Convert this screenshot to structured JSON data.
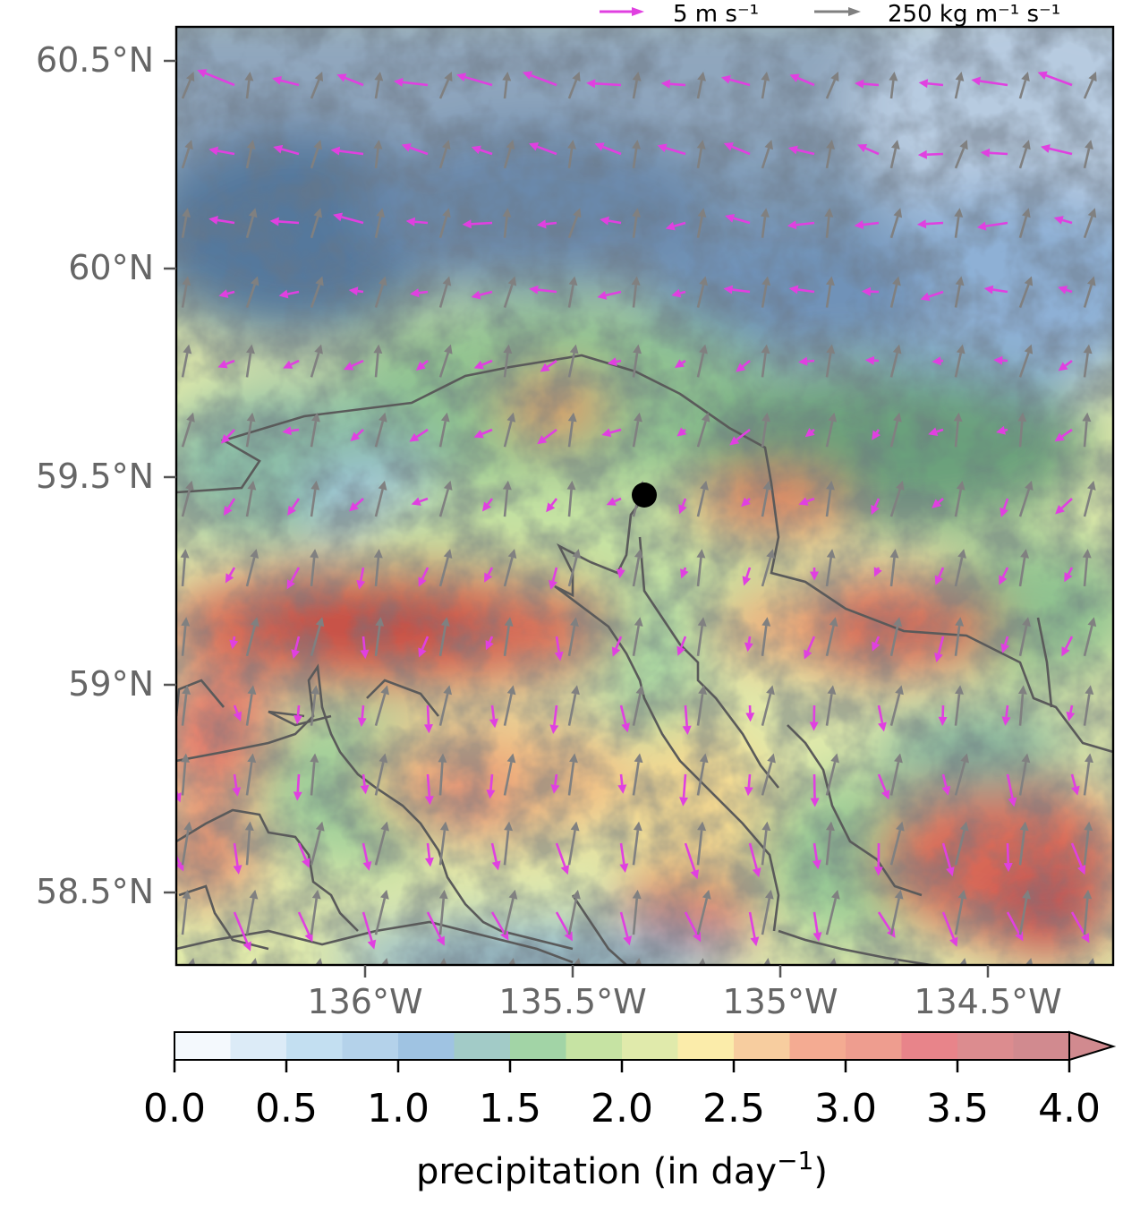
{
  "legend": {
    "wind_key": "5 m s⁻¹",
    "ivt_key": "250 kg m⁻¹ s⁻¹",
    "wind_color": "#e040e0",
    "ivt_color": "#808080"
  },
  "lat_labels": [
    "60.5°N",
    "60°N",
    "59.5°N",
    "59°N",
    "58.5°N"
  ],
  "lon_labels": [
    "136°W",
    "135.5°W",
    "135°W",
    "134.5°W"
  ],
  "colorbar": {
    "ticks": [
      "0.0",
      "0.5",
      "1.0",
      "1.5",
      "2.0",
      "2.5",
      "3.0",
      "3.5",
      "4.0"
    ],
    "label": "precipitation (in day",
    "label_sup": "−1",
    "label_close": ")",
    "colors": [
      "#f4f9fd",
      "#dcebf7",
      "#c3dff1",
      "#b4d2ea",
      "#9fc3e2",
      "#a2cbc7",
      "#a2d4a6",
      "#c6e3a3",
      "#e0eaab",
      "#fbecaa",
      "#f7cd9f",
      "#f4ab92",
      "#ee9d8f",
      "#e8848a",
      "#dc8c8f",
      "#d18a8f"
    ]
  },
  "station_marker": "black-dot"
}
